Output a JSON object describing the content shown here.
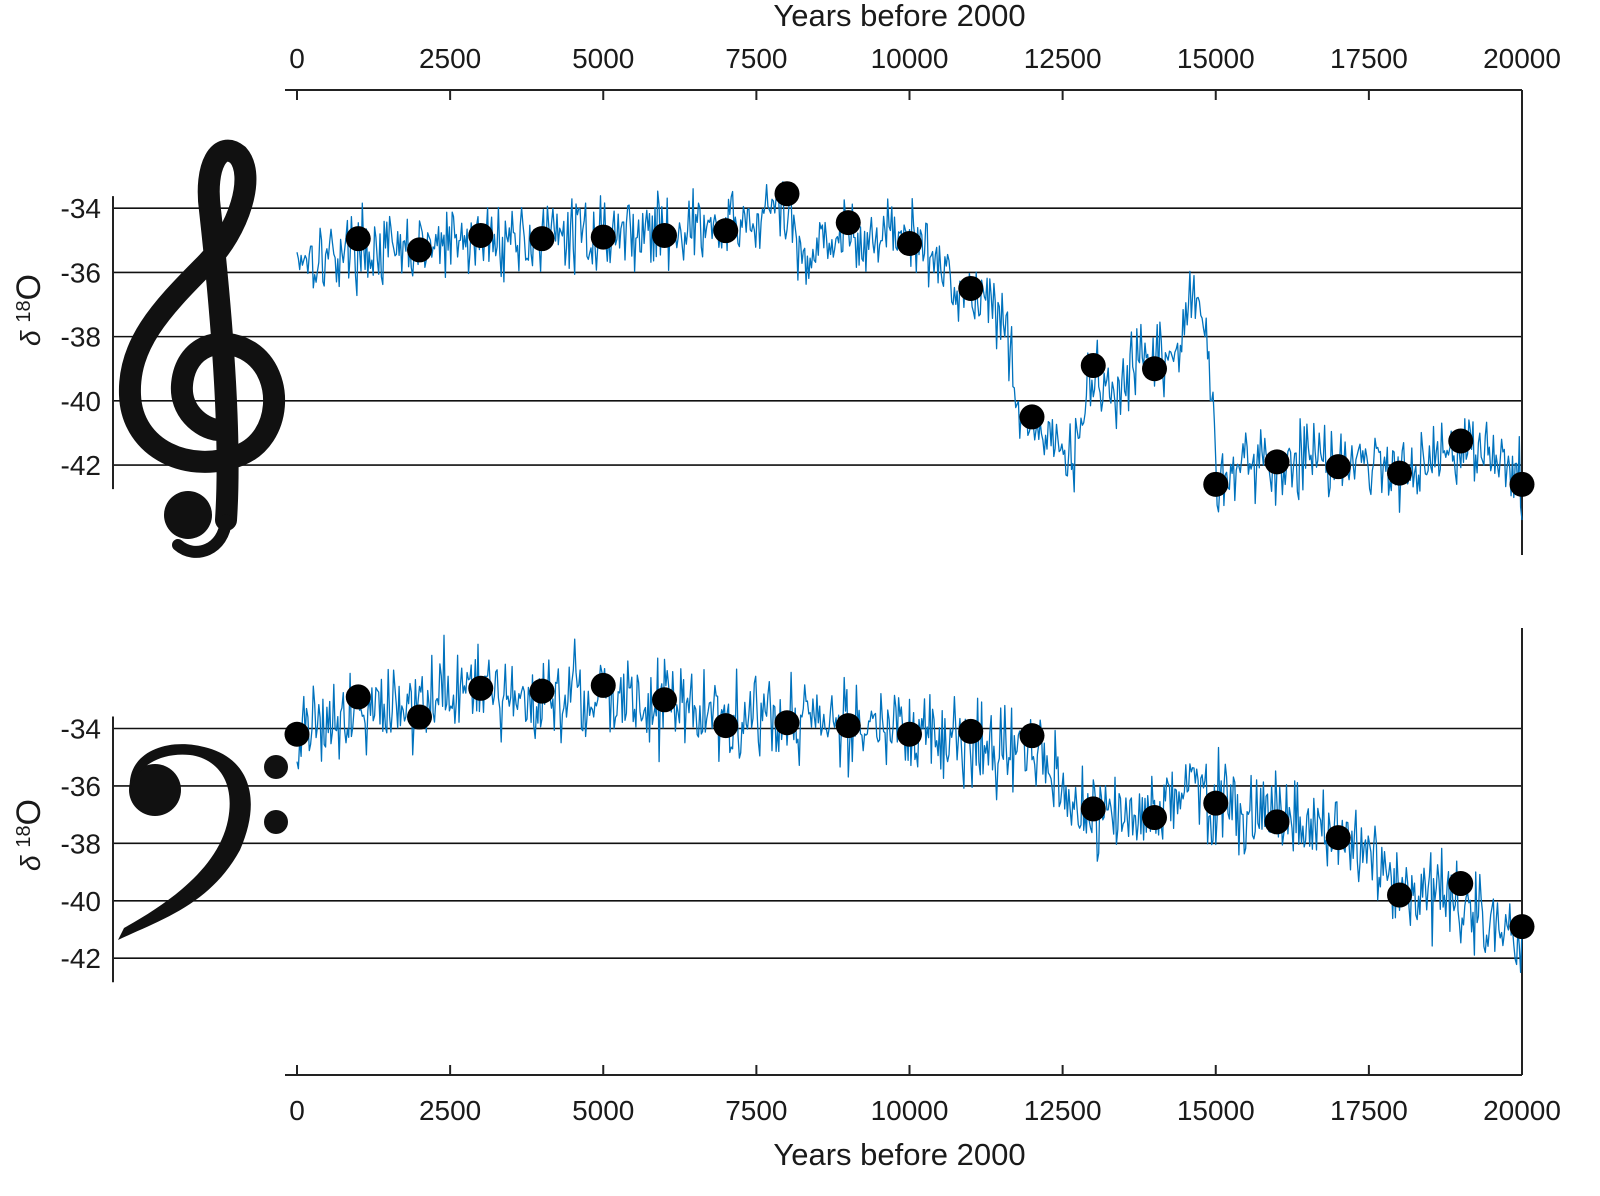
{
  "chart_data": [
    {
      "type": "line",
      "panel": "upper",
      "symbol": "treble-clef",
      "xlabel": "Years before 2000",
      "ylabel": "δ 18O",
      "ylabel_main": "δ",
      "ylabel_sup": "18",
      "ylabel_tail": "O",
      "xaxis_position": "top",
      "xlim": [
        0,
        20000
      ],
      "ylim": [
        -44.8,
        -32.5
      ],
      "x_ticks": [
        0,
        2500,
        5000,
        7500,
        10000,
        12500,
        15000,
        17500,
        20000
      ],
      "y_ticks": [
        -34,
        -36,
        -38,
        -40,
        -42
      ],
      "grid": "horizontal",
      "colors": {
        "line": "#0072BD",
        "dots": "#000000"
      },
      "series": [
        {
          "kind": "line",
          "noise": 0.55,
          "x": [
            0,
            500,
            1000,
            1500,
            2000,
            2500,
            3000,
            3500,
            4000,
            4500,
            5000,
            5500,
            6000,
            6500,
            7000,
            7500,
            7800,
            8000,
            8200,
            8300,
            8500,
            9000,
            9200,
            9500,
            10000,
            10500,
            11000,
            11300,
            11500,
            11700,
            11800,
            12000,
            12300,
            12500,
            12700,
            12900,
            13000,
            13200,
            13500,
            13800,
            14000,
            14300,
            14500,
            14700,
            14900,
            15000,
            15500,
            16000,
            16500,
            17000,
            17500,
            18000,
            18500,
            19000,
            19500,
            20000
          ],
          "y": [
            -35.4,
            -35.5,
            -35.2,
            -35.4,
            -35.3,
            -35.1,
            -35.0,
            -34.9,
            -35.0,
            -34.8,
            -34.8,
            -34.7,
            -34.7,
            -34.6,
            -34.7,
            -34.4,
            -34.0,
            -34.3,
            -35.3,
            -35.7,
            -34.9,
            -34.8,
            -35.4,
            -34.7,
            -34.9,
            -35.8,
            -36.7,
            -36.8,
            -37.2,
            -39.0,
            -40.3,
            -40.9,
            -41.2,
            -41.8,
            -41.7,
            -39.8,
            -39.3,
            -39.6,
            -39.8,
            -38.6,
            -38.9,
            -38.7,
            -37.6,
            -36.7,
            -38.6,
            -42.3,
            -41.8,
            -42.2,
            -41.6,
            -41.7,
            -42.0,
            -42.1,
            -41.8,
            -41.3,
            -41.6,
            -42.6
          ]
        },
        {
          "kind": "points",
          "x": [
            1000,
            2000,
            3000,
            4000,
            5000,
            6000,
            7000,
            8000,
            9000,
            10000,
            11000,
            12000,
            13000,
            14000,
            15000,
            16000,
            17000,
            18000,
            19000,
            20000
          ],
          "y": [
            -34.95,
            -35.3,
            -34.85,
            -34.95,
            -34.9,
            -34.85,
            -34.7,
            -33.55,
            -34.45,
            -35.1,
            -36.5,
            -40.5,
            -38.9,
            -39.0,
            -42.6,
            -41.9,
            -42.05,
            -42.25,
            -41.25,
            -42.6
          ]
        }
      ]
    },
    {
      "type": "line",
      "panel": "lower",
      "symbol": "bass-clef",
      "xlabel": "Years before 2000",
      "ylabel": "δ 18O",
      "ylabel_main": "δ",
      "ylabel_sup": "18",
      "ylabel_tail": "O",
      "xaxis_position": "bottom",
      "xlim": [
        0,
        20000
      ],
      "ylim": [
        -44.5,
        -30.5
      ],
      "x_ticks": [
        0,
        2500,
        5000,
        7500,
        10000,
        12500,
        15000,
        17500,
        20000
      ],
      "y_ticks": [
        -34,
        -36,
        -38,
        -40,
        -42
      ],
      "grid": "horizontal",
      "colors": {
        "line": "#0072BD",
        "dots": "#000000"
      },
      "series": [
        {
          "kind": "line",
          "noise": 0.75,
          "x": [
            0,
            300,
            700,
            1000,
            1500,
            2000,
            2500,
            3000,
            3500,
            4000,
            4500,
            5000,
            5500,
            6000,
            6500,
            7000,
            7500,
            8000,
            8500,
            9000,
            9500,
            10000,
            10500,
            11000,
            11500,
            12000,
            12300,
            12700,
            13000,
            13500,
            14000,
            14500,
            15000,
            15500,
            16000,
            16500,
            17000,
            17500,
            18000,
            18500,
            19000,
            19500,
            20000
          ],
          "y": [
            -34.3,
            -33.6,
            -33.5,
            -33.3,
            -33.2,
            -33.0,
            -32.8,
            -32.8,
            -32.9,
            -32.9,
            -32.8,
            -32.9,
            -33.1,
            -33.1,
            -33.3,
            -33.6,
            -33.6,
            -33.6,
            -33.6,
            -33.9,
            -34.0,
            -34.2,
            -34.4,
            -34.4,
            -34.7,
            -34.7,
            -35.7,
            -36.5,
            -37.0,
            -37.2,
            -36.9,
            -35.7,
            -36.5,
            -36.9,
            -37.0,
            -37.4,
            -37.6,
            -38.5,
            -39.6,
            -39.8,
            -40.2,
            -40.9,
            -41.3
          ]
        },
        {
          "kind": "points",
          "x": [
            0,
            1000,
            2000,
            3000,
            4000,
            5000,
            6000,
            7000,
            8000,
            9000,
            10000,
            11000,
            12000,
            13000,
            14000,
            15000,
            16000,
            17000,
            18000,
            19000,
            20000
          ],
          "y": [
            -34.2,
            -32.9,
            -33.6,
            -32.6,
            -32.7,
            -32.5,
            -33.0,
            -33.9,
            -33.8,
            -33.9,
            -34.2,
            -34.1,
            -34.25,
            -36.8,
            -37.1,
            -36.6,
            -37.25,
            -37.8,
            -39.8,
            -39.4,
            -40.9
          ]
        }
      ]
    }
  ]
}
